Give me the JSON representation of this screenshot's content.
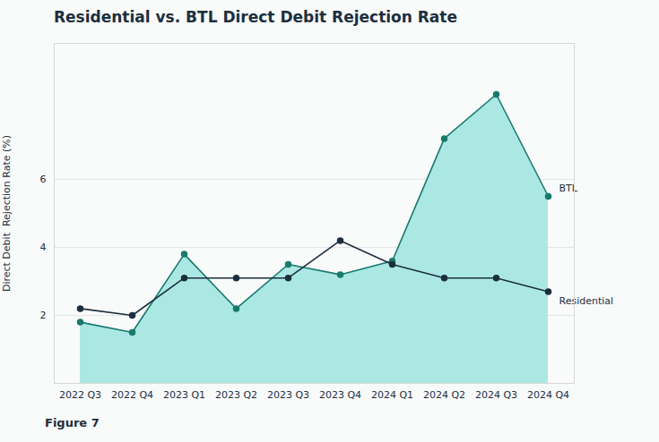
{
  "chart_data": {
    "type": "line",
    "title": "Residential vs. BTL Direct Debit Rejection Rate",
    "ylabel": "Direct Debit  Rejection Rate (%)",
    "caption": "Figure 7",
    "categories": [
      "2022 Q3",
      "2022 Q4",
      "2023 Q1",
      "2023 Q2",
      "2023 Q3",
      "2023 Q4",
      "2024 Q1",
      "2024 Q2",
      "2024 Q3",
      "2024 Q4"
    ],
    "series": [
      {
        "name": "BTL",
        "type": "area",
        "color": "#abe8e4",
        "values": [
          1.8,
          1.5,
          3.8,
          2.2,
          3.5,
          3.2,
          3.6,
          7.2,
          8.5,
          5.5
        ]
      },
      {
        "name": "BTL",
        "type": "line",
        "marker": "circle",
        "color": "#1a7a6e",
        "values": [
          1.8,
          1.5,
          3.8,
          2.2,
          3.5,
          3.2,
          3.6,
          7.2,
          8.5,
          5.5
        ]
      },
      {
        "name": "Residential",
        "type": "line",
        "marker": "circle",
        "color": "#1c2f3e",
        "values": [
          2.2,
          2.0,
          3.1,
          3.1,
          3.1,
          4.2,
          3.5,
          3.1,
          3.1,
          2.7
        ]
      }
    ],
    "annotations": [
      {
        "text": "BTL",
        "color": "#1c2f3e"
      },
      {
        "text": "Residential",
        "color": "#1c2f3e"
      }
    ],
    "ylim": [
      0,
      10
    ],
    "yticks": [
      2,
      4,
      6
    ],
    "grid": true
  }
}
